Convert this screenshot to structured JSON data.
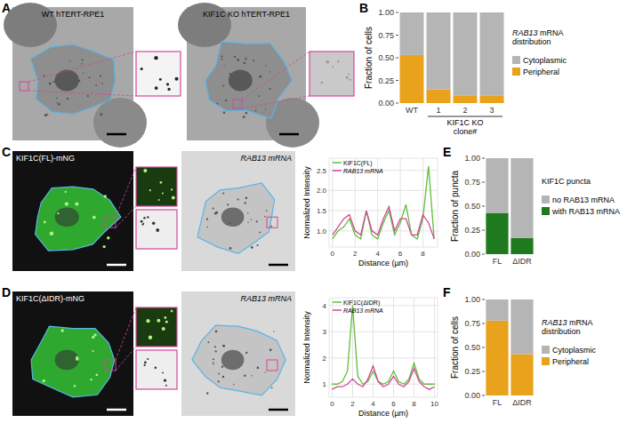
{
  "panels": {
    "labels": [
      "A",
      "B",
      "C",
      "D",
      "E",
      "F"
    ]
  },
  "images": [
    {
      "label": "WT hTERT-RPE1"
    },
    {
      "label": "KIF1C KO hTERT-RPE1"
    },
    {
      "label": "KIF1C(FL)-mNG"
    },
    {
      "label": "RAB13 mRNA"
    },
    {
      "label": "KIF1C(ΔIDR)-mNG"
    },
    {
      "label": "RAB13 mRNA"
    }
  ],
  "chart_data": [
    {
      "type": "bar",
      "stacked": true,
      "categories": [
        "WT",
        "1",
        "2",
        "3"
      ],
      "x_group_label": [
        "KIF1C KO",
        "clone#"
      ],
      "ylabel": "Fraction of cells",
      "legend_title": [
        "RAB13 mRNA",
        "distribution"
      ],
      "legend": "right",
      "ylim": [
        0,
        1
      ],
      "yticks": [
        {
          "value": 0,
          "label": "0.00"
        },
        {
          "value": 0.25,
          "label": "0.25"
        },
        {
          "value": 0.5,
          "label": "0.50"
        },
        {
          "value": 0.75,
          "label": "0.75"
        },
        {
          "value": 1,
          "label": "1.00"
        }
      ],
      "series": [
        {
          "name": "Peripheral",
          "color": "#e8a21c",
          "values": [
            0.53,
            0.15,
            0.08,
            0.08
          ]
        },
        {
          "name": "Cytoplasmic",
          "color": "#b5b5b5",
          "values": [
            0.47,
            0.85,
            0.92,
            0.92
          ]
        }
      ]
    },
    {
      "type": "line",
      "grid": true,
      "legend": "top-left",
      "xlabel": "Distance (µm)",
      "ylabel": "Normalized Intensity",
      "x": [
        0,
        0.5,
        1,
        1.5,
        2,
        2.5,
        3,
        3.5,
        4,
        4.5,
        5,
        5.5,
        6,
        6.5,
        7,
        7.5,
        8,
        8.5,
        9
      ],
      "xlim": [
        -0.3,
        9.3
      ],
      "xticks": [
        0,
        2,
        4,
        6,
        8
      ],
      "ylim": [
        0.6,
        2.8
      ],
      "yticks": [
        {
          "value": 1,
          "label": "1.0"
        },
        {
          "value": 1.5,
          "label": "1.5"
        },
        {
          "value": 2,
          "label": "2.0"
        },
        {
          "value": 2.5,
          "label": "2.5"
        }
      ],
      "series": [
        {
          "name": "KIF1C(FL)",
          "color": "#5fbf3a",
          "values": [
            0.8,
            1.0,
            1.1,
            1.3,
            0.9,
            0.8,
            1.5,
            0.9,
            0.8,
            1.2,
            1.5,
            0.9,
            1.2,
            1.65,
            0.9,
            0.8,
            1.3,
            2.6,
            0.8
          ]
        },
        {
          "name": "RAB13 mRNA",
          "color": "#d6459a",
          "values": [
            0.9,
            1.1,
            1.3,
            1.4,
            1.0,
            0.9,
            1.5,
            1.0,
            0.9,
            1.3,
            1.6,
            1.0,
            1.3,
            1.3,
            0.9,
            0.9,
            1.4,
            1.2,
            0.8
          ]
        }
      ]
    },
    {
      "type": "line",
      "grid": true,
      "legend": "top-left",
      "xlabel": "Distance (µm)",
      "ylabel": "Normalized Intensity",
      "x": [
        0,
        0.5,
        1,
        1.5,
        2,
        2.5,
        3,
        3.5,
        4,
        4.5,
        5,
        5.5,
        6,
        6.5,
        7,
        7.5,
        8,
        8.5,
        9,
        9.5,
        10
      ],
      "xlim": [
        -0.3,
        10.3
      ],
      "xticks": [
        0,
        2,
        4,
        6,
        8,
        10
      ],
      "ylim": [
        0.5,
        4.3
      ],
      "yticks": [
        1,
        2,
        3,
        4
      ],
      "series": [
        {
          "name": "KIF1C(ΔIDR)",
          "color": "#5fbf3a",
          "values": [
            1.0,
            1.0,
            1.1,
            1.5,
            4.0,
            1.3,
            1.0,
            1.1,
            1.5,
            1.1,
            1.0,
            1.1,
            1.5,
            1.1,
            1.0,
            1.2,
            1.8,
            1.2,
            1.0,
            1.0,
            1.0
          ]
        },
        {
          "name": "RAB13 mRNA",
          "color": "#d6459a",
          "values": [
            0.8,
            0.9,
            0.9,
            1.0,
            1.2,
            1.0,
            0.9,
            1.2,
            1.7,
            1.1,
            0.9,
            1.0,
            1.3,
            1.0,
            0.9,
            1.1,
            1.6,
            1.1,
            0.9,
            0.8,
            0.9
          ]
        }
      ]
    },
    {
      "type": "bar",
      "stacked": true,
      "categories": [
        "FL",
        "ΔIDR"
      ],
      "ylabel": "Fraction of puncta",
      "legend_title": [
        "KIF1C puncta"
      ],
      "legend": "right",
      "ylim": [
        0,
        1
      ],
      "yticks": [
        {
          "value": 0,
          "label": "0.00"
        },
        {
          "value": 0.25,
          "label": "0.25"
        },
        {
          "value": 0.5,
          "label": "0.50"
        },
        {
          "value": 0.75,
          "label": "0.75"
        },
        {
          "value": 1,
          "label": "1.00"
        }
      ],
      "series": [
        {
          "name": "with RAB13 mRNA",
          "color": "#1f7a1f",
          "values": [
            0.43,
            0.17
          ]
        },
        {
          "name": "no RAB13 mRNA",
          "color": "#b5b5b5",
          "values": [
            0.57,
            0.83
          ]
        }
      ]
    },
    {
      "type": "bar",
      "stacked": true,
      "categories": [
        "FL",
        "ΔIDR"
      ],
      "ylabel": "Fraction of cells",
      "legend_title": [
        "RAB13 mRNA",
        "distribution"
      ],
      "legend": "right",
      "ylim": [
        0,
        1
      ],
      "yticks": [
        {
          "value": 0,
          "label": "0.00"
        },
        {
          "value": 0.25,
          "label": "0.25"
        },
        {
          "value": 0.5,
          "label": "0.50"
        },
        {
          "value": 0.75,
          "label": "0.75"
        },
        {
          "value": 1,
          "label": "1.00"
        }
      ],
      "series": [
        {
          "name": "Peripheral",
          "color": "#e8a21c",
          "values": [
            0.78,
            0.43
          ]
        },
        {
          "name": "Cytoplasmic",
          "color": "#b5b5b5",
          "values": [
            0.22,
            0.57
          ]
        }
      ]
    }
  ]
}
